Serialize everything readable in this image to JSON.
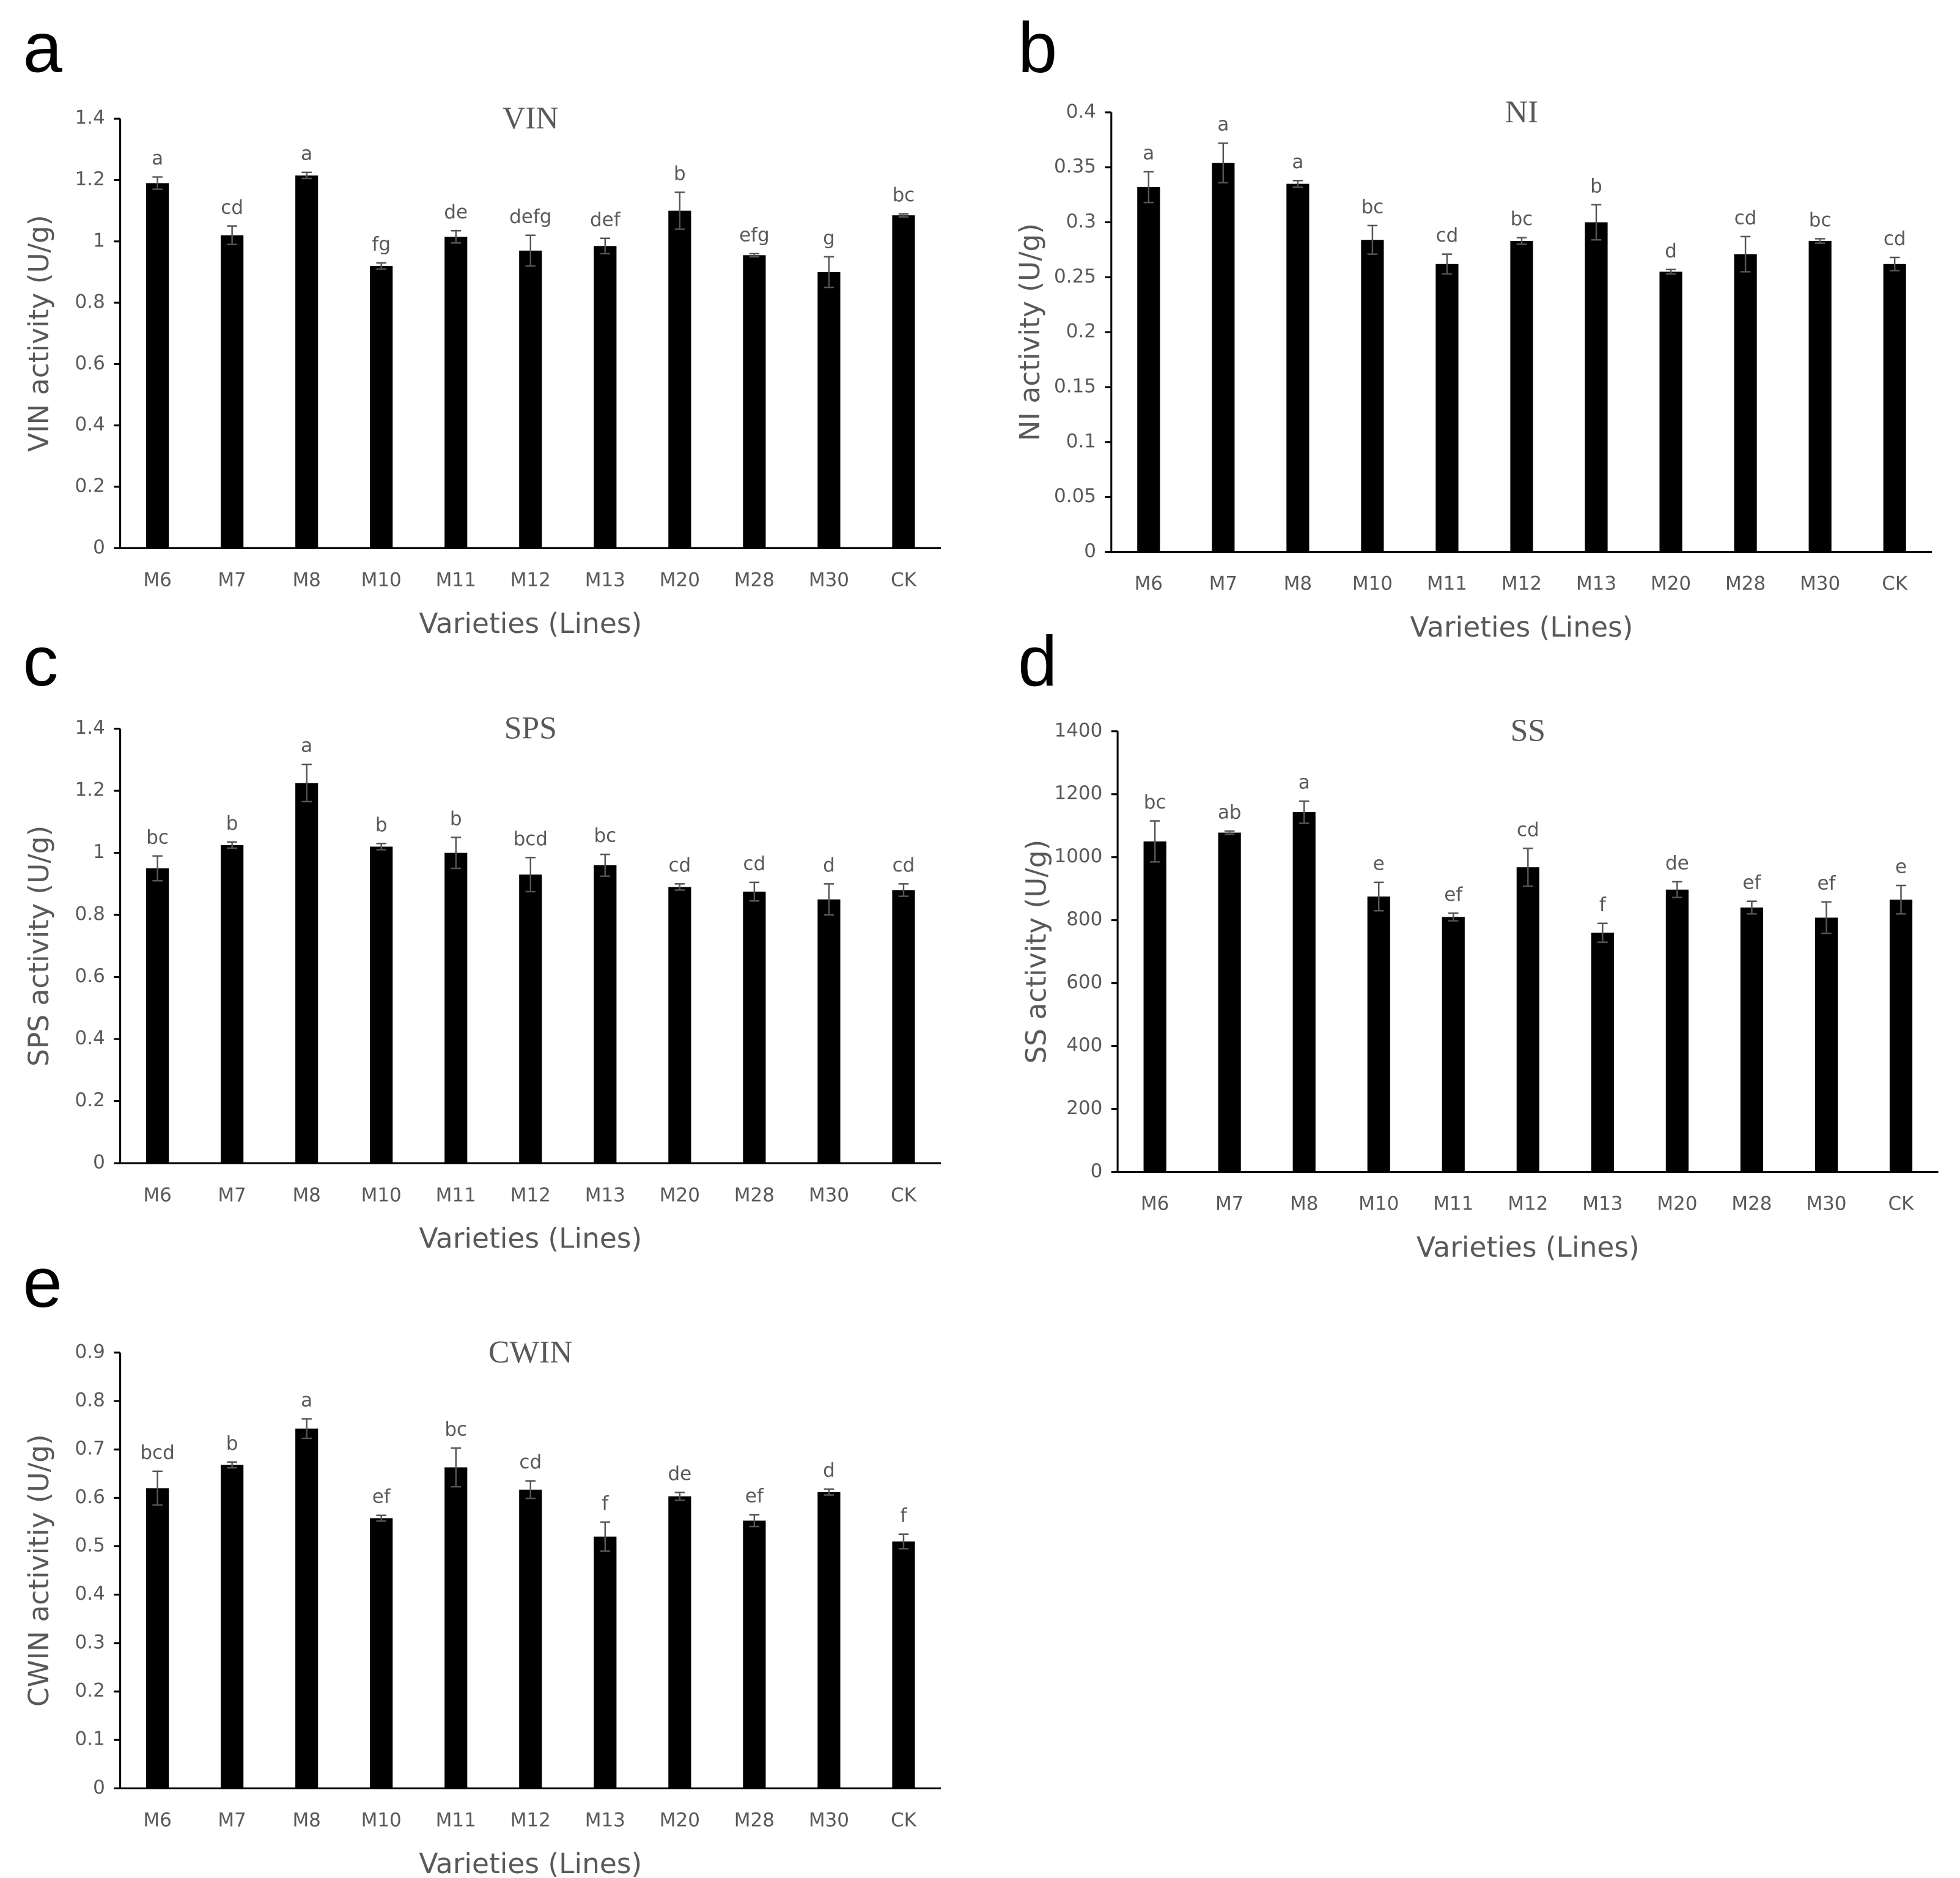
{
  "chart_data": [
    {
      "type": "bar",
      "panel_label": "a",
      "title": "VIN",
      "x_label": "Varieties (Lines)",
      "y_label": "VIN activity (U/g)",
      "categories": [
        "M6",
        "M7",
        "M8",
        "M10",
        "M11",
        "M12",
        "M13",
        "M20",
        "M28",
        "M30",
        "CK"
      ],
      "values": [
        1.19,
        1.02,
        1.215,
        0.92,
        1.015,
        0.97,
        0.985,
        1.1,
        0.955,
        0.9,
        1.085
      ],
      "errors": [
        0.02,
        0.03,
        0.01,
        0.01,
        0.02,
        0.05,
        0.025,
        0.06,
        0.005,
        0.05,
        0.005
      ],
      "annotations": [
        "a",
        "cd",
        "a",
        "fg",
        "de",
        "defg",
        "def",
        "b",
        "efg",
        "g",
        "bc"
      ],
      "color": "#000000",
      "ylim": [
        0,
        1.4
      ],
      "yticks": [
        0,
        0.2,
        0.4,
        0.6,
        0.8,
        1,
        1.2,
        1.4
      ]
    },
    {
      "type": "bar",
      "panel_label": "b",
      "title": "NI",
      "x_label": "Varieties (Lines)",
      "y_label": "NI activity (U/g)",
      "categories": [
        "M6",
        "M7",
        "M8",
        "M10",
        "M11",
        "M12",
        "M13",
        "M20",
        "M28",
        "M30",
        "CK"
      ],
      "values": [
        0.332,
        0.354,
        0.335,
        0.284,
        0.262,
        0.283,
        0.3,
        0.255,
        0.271,
        0.283,
        0.262
      ],
      "errors": [
        0.014,
        0.018,
        0.003,
        0.013,
        0.009,
        0.003,
        0.016,
        0.002,
        0.016,
        0.002,
        0.006
      ],
      "annotations": [
        "a",
        "a",
        "a",
        "bc",
        "cd",
        "bc",
        "b",
        "d",
        "cd",
        "bc",
        "cd"
      ],
      "color": "#000000",
      "ylim": [
        0,
        0.4
      ],
      "yticks": [
        0,
        0.05,
        0.1,
        0.15,
        0.2,
        0.25,
        0.3,
        0.35,
        0.4
      ]
    },
    {
      "type": "bar",
      "panel_label": "c",
      "title": "SPS",
      "x_label": "Varieties (Lines)",
      "y_label": "SPS activity (U/g)",
      "categories": [
        "M6",
        "M7",
        "M8",
        "M10",
        "M11",
        "M12",
        "M13",
        "M20",
        "M28",
        "M30",
        "CK"
      ],
      "values": [
        0.95,
        1.025,
        1.225,
        1.02,
        1.0,
        0.93,
        0.96,
        0.89,
        0.875,
        0.85,
        0.88
      ],
      "errors": [
        0.04,
        0.01,
        0.06,
        0.01,
        0.05,
        0.055,
        0.035,
        0.01,
        0.03,
        0.05,
        0.02
      ],
      "annotations": [
        "bc",
        "b",
        "a",
        "b",
        "b",
        "bcd",
        "bc",
        "cd",
        "cd",
        "d",
        "cd"
      ],
      "color": "#000000",
      "ylim": [
        0,
        1.4
      ],
      "yticks": [
        0,
        0.2,
        0.4,
        0.6,
        0.8,
        1,
        1.2,
        1.4
      ]
    },
    {
      "type": "bar",
      "panel_label": "d",
      "title": "SS",
      "x_label": "Varieties (Lines)",
      "y_label": "SS activity (U/g)",
      "categories": [
        "M6",
        "M7",
        "M8",
        "M10",
        "M11",
        "M12",
        "M13",
        "M20",
        "M28",
        "M30",
        "CK"
      ],
      "values": [
        1050,
        1078,
        1143,
        875,
        810,
        968,
        760,
        897,
        840,
        808,
        865
      ],
      "errors": [
        65,
        5,
        35,
        45,
        12,
        60,
        30,
        25,
        20,
        50,
        45
      ],
      "annotations": [
        "bc",
        "ab",
        "a",
        "e",
        "ef",
        "cd",
        "f",
        "de",
        "ef",
        "ef",
        "e"
      ],
      "color": "#000000",
      "ylim": [
        0,
        1400
      ],
      "yticks": [
        0,
        200,
        400,
        600,
        800,
        1000,
        1200,
        1400
      ]
    },
    {
      "type": "bar",
      "panel_label": "e",
      "title": "CWIN",
      "x_label": "Varieties (Lines)",
      "y_label": "CWIN activitiy (U/g)",
      "categories": [
        "M6",
        "M7",
        "M8",
        "M10",
        "M11",
        "M12",
        "M13",
        "M20",
        "M28",
        "M30",
        "CK"
      ],
      "values": [
        0.62,
        0.668,
        0.743,
        0.558,
        0.663,
        0.617,
        0.52,
        0.603,
        0.553,
        0.612,
        0.51
      ],
      "errors": [
        0.035,
        0.006,
        0.02,
        0.006,
        0.04,
        0.018,
        0.03,
        0.008,
        0.012,
        0.006,
        0.015
      ],
      "annotations": [
        "bcd",
        "b",
        "a",
        "ef",
        "bc",
        "cd",
        "f",
        "de",
        "ef",
        "d",
        "f"
      ],
      "color": "#000000",
      "ylim": [
        0,
        0.9
      ],
      "yticks": [
        0,
        0.1,
        0.2,
        0.3,
        0.4,
        0.5,
        0.6,
        0.7,
        0.8,
        0.9
      ]
    }
  ]
}
